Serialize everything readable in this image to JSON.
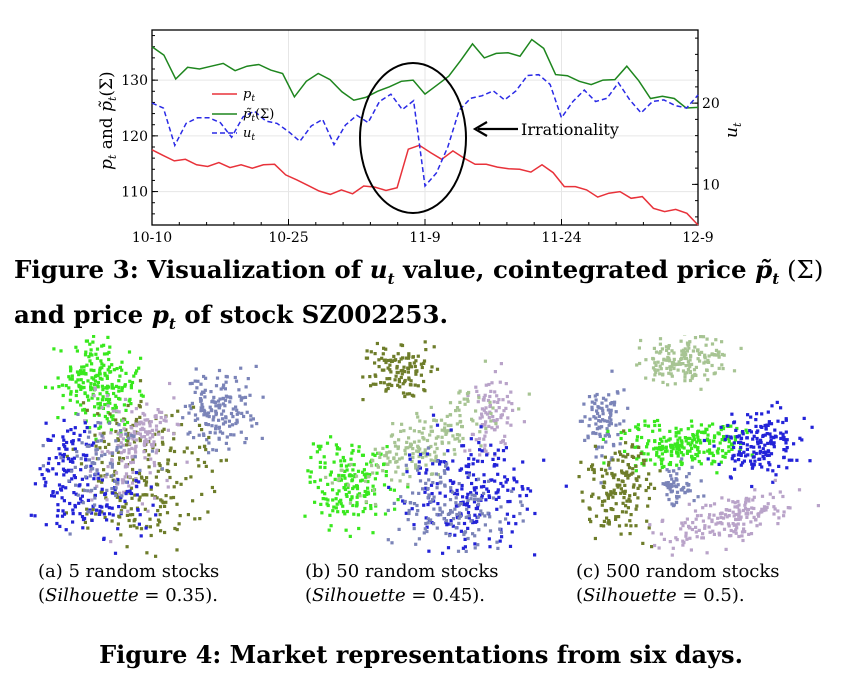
{
  "chart_data": {
    "type": "line",
    "x_tick_labels": [
      "10-10",
      "10-25",
      "11-9",
      "11-24",
      "12-9"
    ],
    "left_ylabel": "p_t and p̃_t(Σ)",
    "right_ylabel": "u_t",
    "left_ylim": [
      104,
      139
    ],
    "left_yticks": [
      "110",
      "120",
      "130"
    ],
    "right_ylim": [
      5,
      29
    ],
    "right_yticks": [
      "10",
      "20"
    ],
    "legend": {
      "position": "upper-left",
      "entries": [
        "p_t",
        "p̃_t(Σ)",
        "u_t"
      ]
    },
    "annotation": "Irrationality",
    "series": [
      {
        "name": "p_t",
        "axis": "left",
        "color": "#e8323a",
        "style": "solid",
        "values": [
          117.5,
          116.5,
          115.5,
          115.8,
          114.8,
          114.5,
          115.2,
          114.3,
          114.8,
          114.2,
          114.8,
          114.9,
          113.0,
          112.1,
          111.1,
          110.1,
          109.5,
          110.3,
          109.6,
          111.0,
          110.8,
          110.2,
          110.7,
          117.6,
          118.3,
          117.0,
          115.8,
          117.3,
          116.0,
          114.9,
          114.9,
          114.4,
          114.1,
          114.0,
          113.5,
          114.8,
          113.4,
          110.9,
          110.9,
          110.3,
          109.0,
          109.7,
          110.0,
          108.8,
          109.1,
          107.0,
          106.4,
          106.8,
          106.1,
          104.0
        ]
      },
      {
        "name": "p̃_t(Σ)",
        "axis": "left",
        "color": "#1e861e",
        "style": "solid",
        "values": [
          136.0,
          134.5,
          130.2,
          132.3,
          132.0,
          132.5,
          133.0,
          131.7,
          132.5,
          132.8,
          131.8,
          131.2,
          127.0,
          129.8,
          131.2,
          130.1,
          127.9,
          126.4,
          126.9,
          128.0,
          128.8,
          129.8,
          130.0,
          127.5,
          129.1,
          130.7,
          133.5,
          136.5,
          134.0,
          134.8,
          134.9,
          134.3,
          137.3,
          135.7,
          131.0,
          130.8,
          129.8,
          129.2,
          130.0,
          130.1,
          132.5,
          129.9,
          126.7,
          127.1,
          126.7,
          125.0,
          125.1
        ]
      },
      {
        "name": "u_t",
        "axis": "right",
        "color": "#2a2ae6",
        "style": "dashed",
        "values": [
          20.0,
          19.4,
          14.8,
          17.5,
          18.2,
          18.2,
          17.6,
          15.8,
          18.3,
          19.0,
          17.8,
          17.5,
          16.5,
          15.3,
          17.2,
          18.0,
          14.9,
          17.3,
          18.5,
          17.6,
          20.2,
          21.1,
          19.2,
          20.3,
          9.8,
          11.4,
          14.6,
          19.1,
          20.6,
          20.9,
          21.5,
          20.4,
          21.5,
          23.4,
          23.5,
          22.3,
          18.2,
          20.2,
          21.6,
          20.2,
          20.6,
          22.5,
          20.4,
          18.8,
          20.2,
          20.4,
          19.7,
          19.4,
          21.0
        ]
      }
    ]
  },
  "figure3": {
    "caption_line1_a": "Figure 3: Visualization of ",
    "caption_ut": "u",
    "caption_ut_sub": "t",
    "caption_line1_b": " value, cointegrated price ",
    "caption_pt": "p̃",
    "caption_pt_sub": "t",
    "caption_line1_c": " (Σ)",
    "caption_line2_a": "and price ",
    "caption_p": "p",
    "caption_p_sub": "t",
    "caption_line2_b": " of stock SZ002253."
  },
  "figure4": {
    "cluster_colors": {
      "bright_green": "#39e81e",
      "olive": "#6e7d2a",
      "slate_blue": "#7b84b8",
      "blue": "#2323d8",
      "lilac": "#b9a3c9",
      "sage": "#a7c493"
    },
    "panels": [
      {
        "label": "(a)  5  random  stocks",
        "metric_name": "Silhouette",
        "metric_value": "= 0.35)."
      },
      {
        "label": "(b)  50 random stocks",
        "metric_name": "Silhouette",
        "metric_value": "= 0.45)."
      },
      {
        "label": "(c)  500 random stocks",
        "metric_name": "Silhouette",
        "metric_value": "= 0.5)."
      }
    ],
    "caption": "Figure 4: Market representations from six days."
  }
}
